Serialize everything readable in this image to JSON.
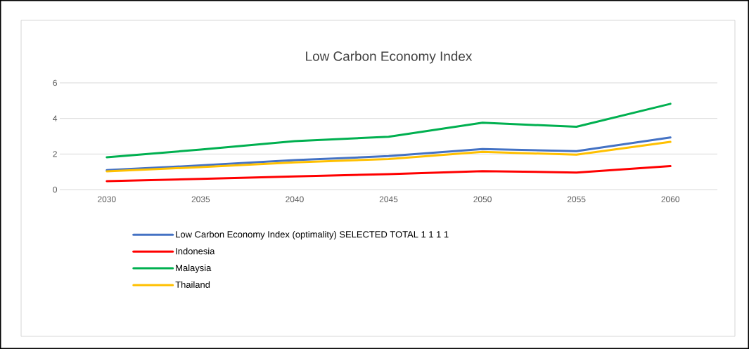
{
  "chart_data": {
    "type": "line",
    "title": "Low Carbon Economy Index",
    "categories": [
      "2030",
      "2035",
      "2040",
      "2045",
      "2050",
      "2055",
      "2060"
    ],
    "series": [
      {
        "name": "Low Carbon Economy Index (optimality) SELECTED TOTAL 1 1 1 1",
        "color": "#4472c4",
        "values": [
          1.09,
          1.36,
          1.66,
          1.88,
          2.28,
          2.16,
          2.93
        ]
      },
      {
        "name": "Indonesia",
        "color": "#ff0000",
        "values": [
          0.47,
          0.6,
          0.74,
          0.87,
          1.04,
          0.96,
          1.32
        ]
      },
      {
        "name": "Malaysia",
        "color": "#00b050",
        "values": [
          1.82,
          2.25,
          2.72,
          2.97,
          3.76,
          3.53,
          4.82
        ]
      },
      {
        "name": "Thailand",
        "color": "#ffc000",
        "values": [
          1.03,
          1.26,
          1.53,
          1.72,
          2.12,
          1.96,
          2.68
        ]
      }
    ],
    "ylim": [
      0,
      6
    ],
    "yticks": [
      0,
      2,
      4,
      6
    ],
    "grid": "y",
    "legend": "bottom"
  }
}
